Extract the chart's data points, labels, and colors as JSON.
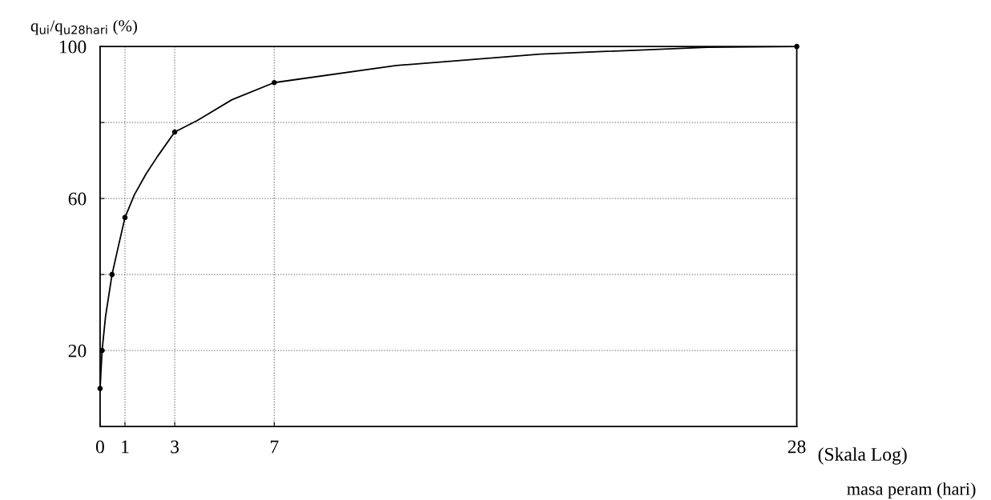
{
  "chart_data": {
    "type": "line",
    "ylabel": "q$_{ui}$/q$_{u28hari}$ (%)",
    "xlabel": "masa peram (hari)",
    "annotations": [
      "(Skala Log)"
    ],
    "series": [
      {
        "marker": "none",
        "color": "#000000",
        "x": [
          0,
          0.08,
          0.22,
          0.48,
          0.72,
          1,
          1.38,
          1.85,
          2.3,
          3,
          3.9,
          5.3,
          7,
          11.9,
          17.7,
          24.4,
          28
        ],
        "values": [
          10,
          20,
          29,
          40,
          47,
          55,
          61,
          66.5,
          71,
          77.5,
          80.5,
          86,
          90.5,
          95,
          98,
          99.8,
          100
        ]
      },
      {
        "type": "scatter",
        "marker": "circle",
        "color": "#000000",
        "x": [
          0,
          0.08,
          0.48,
          1,
          3,
          7,
          28
        ],
        "values": [
          10,
          20,
          40,
          55,
          77.5,
          90.5,
          100
        ]
      }
    ],
    "xlim": [
      0,
      28
    ],
    "xticks": [
      0,
      1,
      3,
      7,
      28
    ],
    "ylim": [
      0,
      100
    ],
    "yticks": [
      {
        "value": 20,
        "label": "20"
      },
      {
        "value": 40,
        "label": null
      },
      {
        "value": 60,
        "label": "60"
      },
      {
        "value": 80,
        "label": null
      },
      {
        "value": 100,
        "label": "100"
      }
    ],
    "grid": true,
    "line_style": "solid",
    "legend": false
  }
}
